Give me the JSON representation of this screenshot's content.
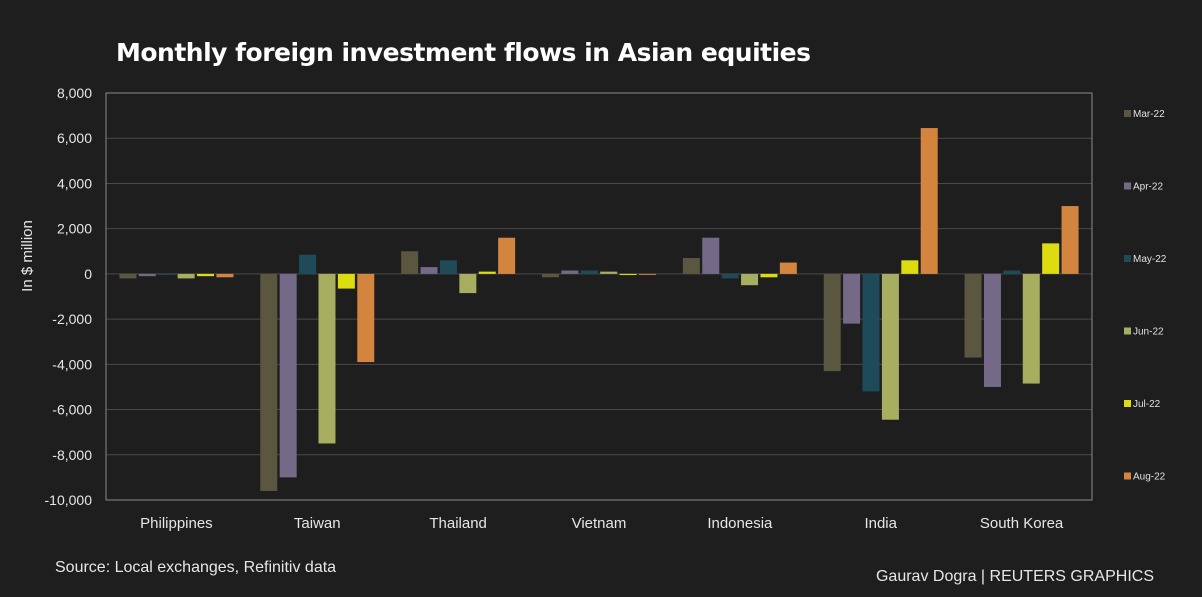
{
  "chart_data": {
    "type": "bar",
    "title": "Monthly foreign investment flows in Asian equities",
    "ylabel": "In $ million",
    "xlabel": "",
    "ylim": [
      -10000,
      8000
    ],
    "yticks": [
      8000,
      6000,
      4000,
      2000,
      0,
      -2000,
      -4000,
      -6000,
      -8000,
      -10000
    ],
    "ytick_labels": [
      "8,000",
      "6,000",
      "4,000",
      "2,000",
      "0",
      "-2,000",
      "-4,000",
      "-6,000",
      "-8,000",
      "-10,000"
    ],
    "grid": true,
    "legend_position": "right",
    "categories": [
      "Philippines",
      "Taiwan",
      "Thailand",
      "Vietnam",
      "Indonesia",
      "India",
      "South Korea"
    ],
    "series": [
      {
        "name": "Mar-22",
        "color": "#5a5640",
        "values": [
          -200,
          -9600,
          1000,
          -150,
          700,
          -4300,
          -3700
        ]
      },
      {
        "name": "Apr-22",
        "color": "#746a88",
        "values": [
          -100,
          -9000,
          300,
          150,
          1600,
          -2200,
          -5000
        ]
      },
      {
        "name": "May-22",
        "color": "#1f4a5a",
        "values": [
          -50,
          850,
          600,
          150,
          -200,
          -5200,
          150
        ]
      },
      {
        "name": "Jun-22",
        "color": "#a7ae60",
        "values": [
          -200,
          -7500,
          -850,
          100,
          -500,
          -6450,
          -4850
        ]
      },
      {
        "name": "Jul-22",
        "color": "#dcdc10",
        "values": [
          -100,
          -650,
          100,
          -50,
          -150,
          600,
          1350
        ]
      },
      {
        "name": "Aug-22",
        "color": "#d3843e",
        "values": [
          -150,
          -3900,
          1600,
          0,
          500,
          6450,
          3000
        ]
      }
    ]
  },
  "footer": {
    "source": "Source: Local exchanges, Refinitiv data",
    "credit": "Gaurav Dogra | REUTERS GRAPHICS"
  },
  "colors": {
    "background": "#1e1e1f",
    "grid": "#4a4a4a",
    "frame": "#8a8a8a"
  }
}
